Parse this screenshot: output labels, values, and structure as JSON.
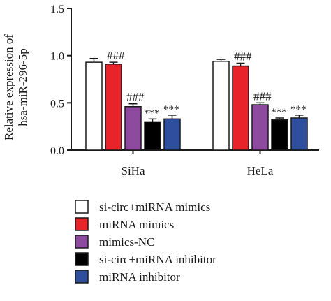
{
  "chart_data": {
    "type": "bar",
    "ylabel_lines": [
      "Relative expression of",
      "hsa-miR-296-5p"
    ],
    "ylim": [
      0,
      1.5
    ],
    "yticks": [
      {
        "value": 0.0,
        "label": "0.0"
      },
      {
        "value": 0.5,
        "label": "0.5"
      },
      {
        "value": 1.0,
        "label": "1.0"
      },
      {
        "value": 1.5,
        "label": "1.5"
      }
    ],
    "categories": [
      "SiHa",
      "HeLa"
    ],
    "grid": false,
    "legend": "bottom",
    "series": [
      {
        "name": "si-circ+miRNA mimics",
        "color": "#ffffff",
        "values": [
          0.93,
          0.94
        ],
        "errors": [
          0.04,
          0.02
        ],
        "annotations": [
          "",
          ""
        ]
      },
      {
        "name": "miRNA mimics",
        "color": "#e8232a",
        "values": [
          0.91,
          0.89
        ],
        "errors": [
          0.02,
          0.03
        ],
        "annotations": [
          "###",
          "###"
        ]
      },
      {
        "name": "mimics-NC",
        "color": "#8e4a9e",
        "values": [
          0.46,
          0.48
        ],
        "errors": [
          0.03,
          0.02
        ],
        "annotations": [
          "###",
          "###"
        ]
      },
      {
        "name": "si-circ+miRNA inhibitor",
        "color": "#000000",
        "values": [
          0.3,
          0.32
        ],
        "errors": [
          0.03,
          0.02
        ],
        "annotations": [
          "***",
          "***"
        ]
      },
      {
        "name": "miRNA inhibitor",
        "color": "#2f4f9e",
        "values": [
          0.33,
          0.34
        ],
        "errors": [
          0.04,
          0.03
        ],
        "annotations": [
          "***",
          "***"
        ]
      }
    ]
  }
}
